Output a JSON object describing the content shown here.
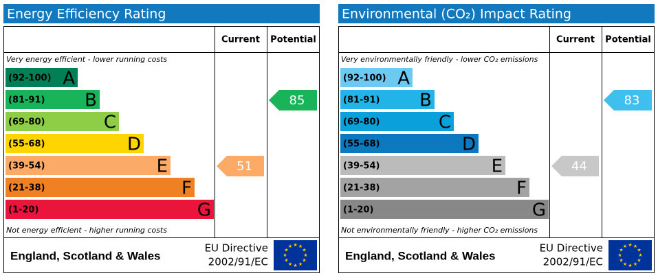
{
  "panels": [
    {
      "title": "Energy Efficiency Rating",
      "current_header": "Current",
      "potential_header": "Potential",
      "top_note": "Very energy efficient - lower running costs",
      "bottom_note": "Not energy efficient - higher running costs",
      "bands": [
        {
          "range": "(92-100)",
          "letter": "A",
          "color": "#008054"
        },
        {
          "range": "(81-91)",
          "letter": "B",
          "color": "#19b459"
        },
        {
          "range": "(69-80)",
          "letter": "C",
          "color": "#8dce46"
        },
        {
          "range": "(55-68)",
          "letter": "D",
          "color": "#ffd500"
        },
        {
          "range": "(39-54)",
          "letter": "E",
          "color": "#fcaa65"
        },
        {
          "range": "(21-38)",
          "letter": "F",
          "color": "#ef8023"
        },
        {
          "range": "(1-20)",
          "letter": "G",
          "color": "#e9153b"
        }
      ],
      "current": 51,
      "current_color": "#fcaa65",
      "potential": 85,
      "potential_color": "#19b459",
      "region": "England, Scotland & Wales",
      "directive": "EU Directive",
      "directive_number": "2002/91/EC"
    },
    {
      "title": "Environmental (CO₂) Impact Rating",
      "current_header": "Current",
      "potential_header": "Potential",
      "top_note": "Very environmentally friendly - lower CO₂ emissions",
      "bottom_note": "Not environmentally friendly - higher CO₂ emissions",
      "bands": [
        {
          "range": "(92-100)",
          "letter": "A",
          "color": "#6ccaf2"
        },
        {
          "range": "(81-91)",
          "letter": "B",
          "color": "#22b4e8"
        },
        {
          "range": "(69-80)",
          "letter": "C",
          "color": "#0aa0dc"
        },
        {
          "range": "(55-68)",
          "letter": "D",
          "color": "#0b78c0"
        },
        {
          "range": "(39-54)",
          "letter": "E",
          "color": "#bbbbbb"
        },
        {
          "range": "(21-38)",
          "letter": "F",
          "color": "#a3a3a3"
        },
        {
          "range": "(1-20)",
          "letter": "G",
          "color": "#888888"
        }
      ],
      "current": 44,
      "current_color": "#c8c8c8",
      "potential": 83,
      "potential_color": "#3fbfee",
      "region": "England, Scotland & Wales",
      "directive": "EU Directive",
      "directive_number": "2002/91/EC"
    }
  ]
}
